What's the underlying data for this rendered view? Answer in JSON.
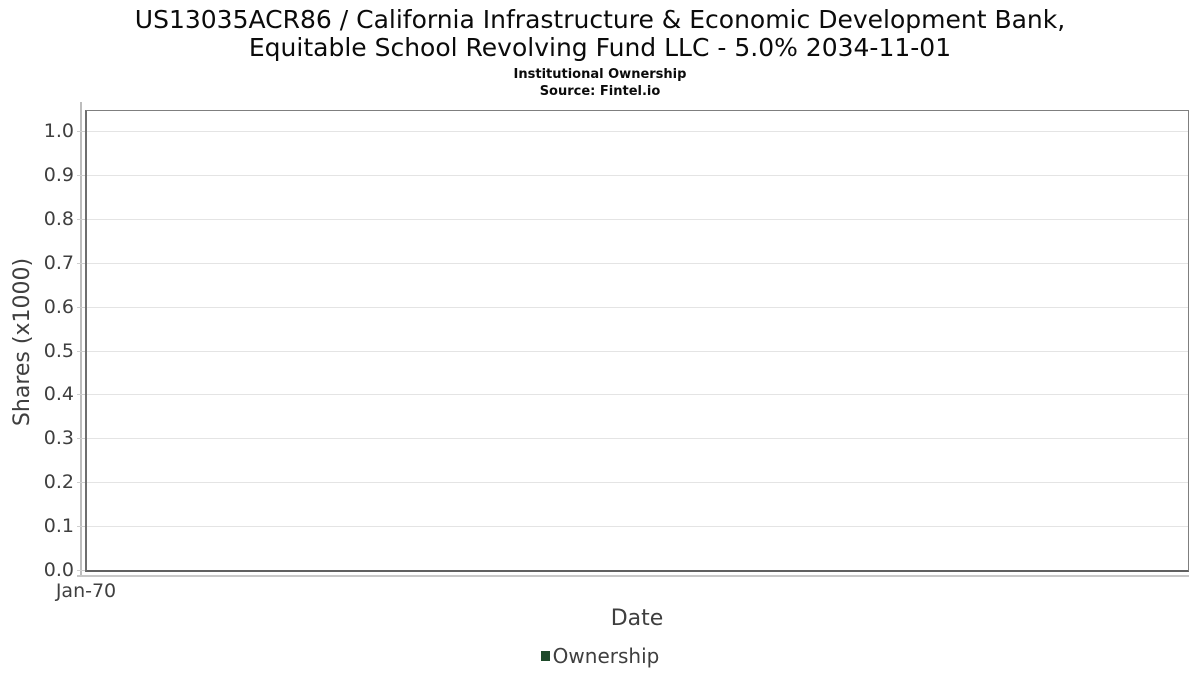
{
  "chart_data": {
    "type": "line",
    "title": "US13035ACR86 / California Infrastructure & Economic Development Bank, Equitable School Revolving Fund LLC - 5.0% 2034-11-01",
    "title_lines": [
      "US13035ACR86 / California Infrastructure & Economic Development Bank,",
      "Equitable School Revolving Fund LLC - 5.0% 2034-11-01"
    ],
    "subtitle": "Institutional Ownership",
    "source": "Source: Fintel.io",
    "xlabel": "Date",
    "ylabel": "Shares (x1000)",
    "ylim": [
      0.0,
      1.05
    ],
    "yticks": [
      "0.0",
      "0.1",
      "0.2",
      "0.3",
      "0.4",
      "0.5",
      "0.6",
      "0.7",
      "0.8",
      "0.9",
      "1.0"
    ],
    "xticks": [
      "Jan-70"
    ],
    "grid": "horizontal-only",
    "legend_position": "bottom-center",
    "legend": [
      {
        "label": "Ownership",
        "color": "#1e4a2a"
      }
    ],
    "series": [
      {
        "name": "Ownership",
        "x": [],
        "values": []
      }
    ]
  },
  "colors": {
    "background": "#ffffff",
    "plot_border": "#7f7f7f",
    "axis_line_light": "#c8c8c8",
    "gridline": "#e4e4e4",
    "tick_text": "#3f3f3f",
    "title_text": "#0b0b0b",
    "legend_green": "#1e4a2a"
  }
}
